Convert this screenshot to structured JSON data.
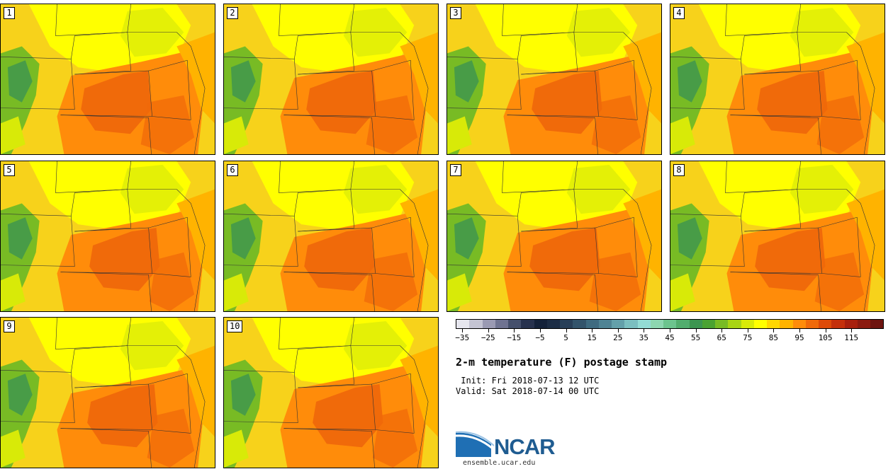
{
  "title": "2-m temperature (F) postage stamp",
  "init": " Init: Fri 2018-07-13 12 UTC",
  "valid": "Valid: Sat 2018-07-14 00 UTC",
  "site": "ensemble.ucar.edu",
  "logo_text": "NCAR",
  "members": [
    "1",
    "2",
    "3",
    "4",
    "5",
    "6",
    "7",
    "8",
    "9",
    "10"
  ],
  "colorbar": {
    "colors": [
      "#e6e6ee",
      "#c4c4d3",
      "#9a9ab3",
      "#6f7391",
      "#45506c",
      "#27324e",
      "#14223a",
      "#1c2d45",
      "#283f58",
      "#33546b",
      "#3f6b80",
      "#4f8394",
      "#63a0aa",
      "#7bbfc0",
      "#93dbd4",
      "#8dd6b0",
      "#6cc48e",
      "#52ad6e",
      "#3c9550",
      "#4aa232",
      "#78bb24",
      "#a8d414",
      "#d8ea08",
      "#ffff00",
      "#ffd700",
      "#ffb300",
      "#ff8c0a",
      "#f06a0a",
      "#dd4a08",
      "#c4300b",
      "#a8200e",
      "#8b1a10",
      "#6e1410"
    ],
    "ticks": [
      "-35",
      "-25",
      "-15",
      "-5",
      "5",
      "15",
      "25",
      "35",
      "45",
      "55",
      "65",
      "75",
      "85",
      "95",
      "105",
      "115"
    ]
  },
  "colors": {
    "hot": "#f06a0a",
    "warm": "#ff8c0a",
    "mild": "#ffb300",
    "base": "#f7d21b",
    "yellow": "#ffff00",
    "lime": "#d8ea08",
    "green": "#78bb24",
    "dkgreen": "#3c9550",
    "ncar_blue": "#1f5c91"
  }
}
